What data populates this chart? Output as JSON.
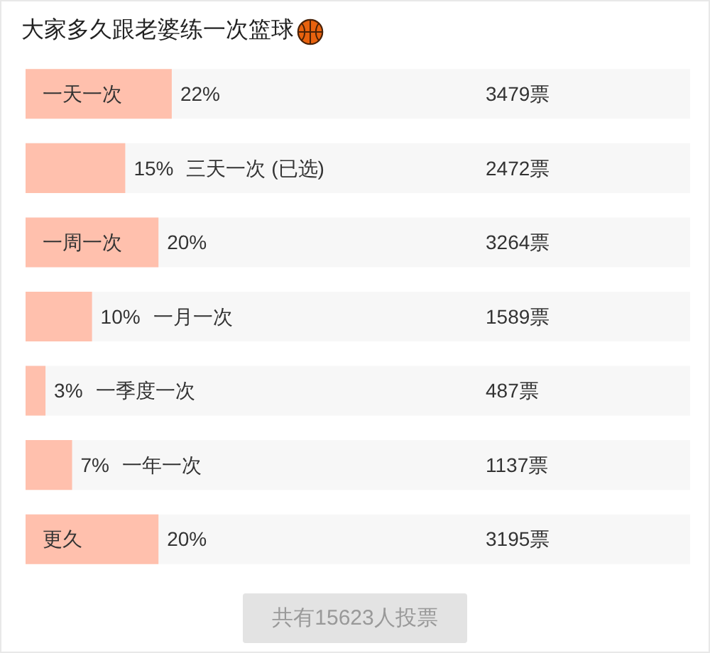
{
  "chart_data": {
    "type": "bar",
    "orientation": "horizontal",
    "title": "大家多久跟老婆练一次篮球",
    "categories": [
      "一天一次",
      "三天一次 (已选)",
      "一周一次",
      "一月一次",
      "一季度一次",
      "一年一次",
      "更久"
    ],
    "values": [
      22,
      15,
      20,
      10,
      3,
      7,
      20
    ],
    "value_labels": [
      "22%",
      "15%",
      "20%",
      "10%",
      "3%",
      "7%",
      "20%"
    ],
    "color": "#ffc0ad",
    "xlim": [
      0,
      100
    ],
    "tick_labels": "y",
    "annotations": [
      "3479票",
      "2472票",
      "3264票",
      "1589票",
      "487票",
      "1137票",
      "3195票",
      "共有15623人投票"
    ]
  }
}
